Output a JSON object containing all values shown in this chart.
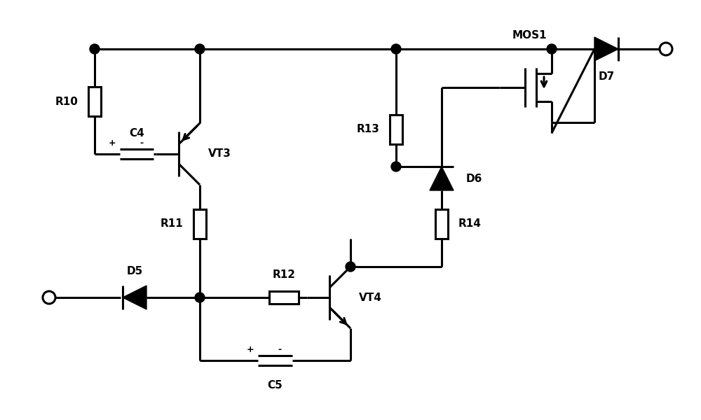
{
  "bg": "#ffffff",
  "lc": "#000000",
  "lw": 2.2,
  "fw": 10.0,
  "fh": 6.0,
  "dpi": 100,
  "xlim": [
    0,
    10
  ],
  "ylim": [
    0,
    6
  ]
}
